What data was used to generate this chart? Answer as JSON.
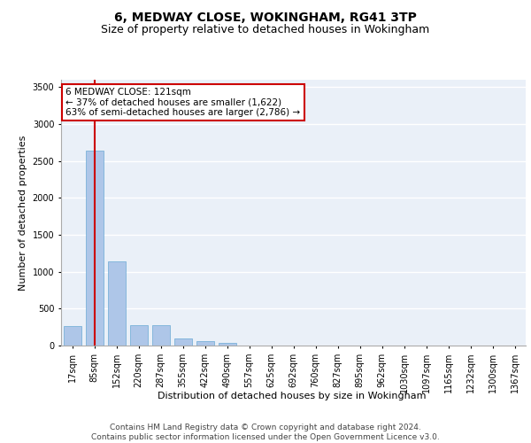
{
  "title_line1": "6, MEDWAY CLOSE, WOKINGHAM, RG41 3TP",
  "title_line2": "Size of property relative to detached houses in Wokingham",
  "xlabel": "Distribution of detached houses by size in Wokingham",
  "ylabel": "Number of detached properties",
  "categories": [
    "17sqm",
    "85sqm",
    "152sqm",
    "220sqm",
    "287sqm",
    "355sqm",
    "422sqm",
    "490sqm",
    "557sqm",
    "625sqm",
    "692sqm",
    "760sqm",
    "827sqm",
    "895sqm",
    "962sqm",
    "1030sqm",
    "1097sqm",
    "1165sqm",
    "1232sqm",
    "1300sqm",
    "1367sqm"
  ],
  "values": [
    270,
    2640,
    1140,
    280,
    280,
    100,
    60,
    40,
    0,
    0,
    0,
    0,
    0,
    0,
    0,
    0,
    0,
    0,
    0,
    0,
    0
  ],
  "bar_color": "#aec6e8",
  "bar_edge_color": "#6aaad4",
  "property_size": 121,
  "annotation_text": "6 MEDWAY CLOSE: 121sqm\n← 37% of detached houses are smaller (1,622)\n63% of semi-detached houses are larger (2,786) →",
  "annotation_box_color": "#ffffff",
  "annotation_box_edge_color": "#cc0000",
  "vline_color": "#cc0000",
  "ylim": [
    0,
    3600
  ],
  "yticks": [
    0,
    500,
    1000,
    1500,
    2000,
    2500,
    3000,
    3500
  ],
  "footer_text": "Contains HM Land Registry data © Crown copyright and database right 2024.\nContains public sector information licensed under the Open Government Licence v3.0.",
  "background_color": "#eaf0f8",
  "grid_color": "#ffffff",
  "title_fontsize": 10,
  "subtitle_fontsize": 9,
  "axis_label_fontsize": 8,
  "tick_fontsize": 7,
  "footer_fontsize": 6.5,
  "annotation_fontsize": 7.5
}
